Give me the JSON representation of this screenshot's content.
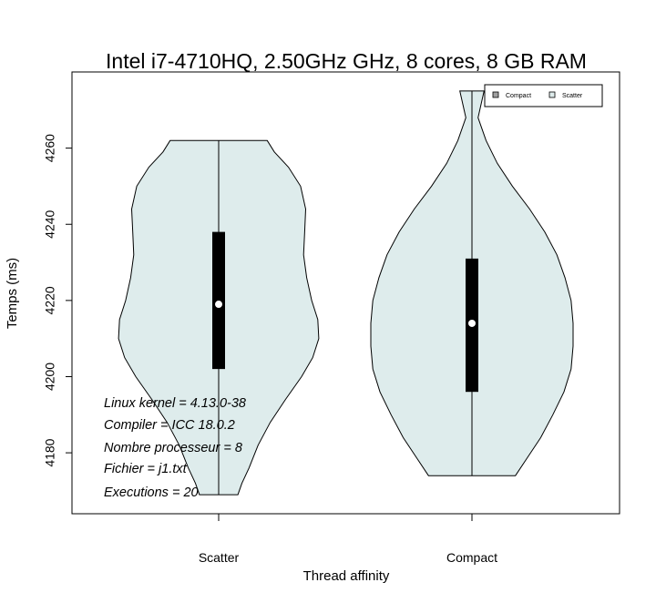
{
  "chart_data": {
    "type": "violin",
    "title": "Intel i7-4710HQ, 2.50GHz GHz, 8 cores, 8 GB RAM",
    "xlabel": "Thread affinity",
    "ylabel": "Temps (ms)",
    "categories": [
      "Scatter",
      "Compact"
    ],
    "ylim": [
      4164,
      4280
    ],
    "yticks": [
      4180,
      4200,
      4220,
      4240,
      4260
    ],
    "fill_color": "#deecec",
    "series": [
      {
        "name": "Scatter",
        "min": 4169,
        "q1": 4202,
        "median": 4219,
        "q3": 4238,
        "max": 4262,
        "density": [
          [
            4169,
            0.19
          ],
          [
            4172,
            0.23
          ],
          [
            4176,
            0.3
          ],
          [
            4182,
            0.39
          ],
          [
            4188,
            0.51
          ],
          [
            4194,
            0.66
          ],
          [
            4200,
            0.82
          ],
          [
            4205,
            0.93
          ],
          [
            4210,
            0.99
          ],
          [
            4215,
            0.98
          ],
          [
            4220,
            0.92
          ],
          [
            4226,
            0.87
          ],
          [
            4232,
            0.84
          ],
          [
            4238,
            0.85
          ],
          [
            4244,
            0.86
          ],
          [
            4250,
            0.81
          ],
          [
            4255,
            0.69
          ],
          [
            4259,
            0.55
          ],
          [
            4262,
            0.48
          ]
        ]
      },
      {
        "name": "Compact",
        "min": 4174,
        "q1": 4196,
        "median": 4214,
        "q3": 4231,
        "max": 4275,
        "density": [
          [
            4174,
            0.43
          ],
          [
            4178,
            0.53
          ],
          [
            4184,
            0.68
          ],
          [
            4190,
            0.8
          ],
          [
            4196,
            0.91
          ],
          [
            4202,
            0.98
          ],
          [
            4208,
            1.0
          ],
          [
            4214,
            1.0
          ],
          [
            4220,
            0.98
          ],
          [
            4226,
            0.92
          ],
          [
            4232,
            0.84
          ],
          [
            4238,
            0.72
          ],
          [
            4244,
            0.57
          ],
          [
            4250,
            0.4
          ],
          [
            4256,
            0.25
          ],
          [
            4262,
            0.14
          ],
          [
            4268,
            0.06
          ],
          [
            4275,
            0.12
          ]
        ]
      }
    ],
    "legend": {
      "position": "top-right",
      "entries": [
        {
          "label": "Compact",
          "color": "#a0a0a0"
        },
        {
          "label": "Scatter",
          "color": "#deecec"
        }
      ]
    },
    "annotations": [
      "Linux kernel = 4.13.0-38",
      "Compiler = ICC 18.0.2",
      "Nombre processeur = 8",
      "Fichier = j1.txt",
      "Executions = 20"
    ]
  }
}
